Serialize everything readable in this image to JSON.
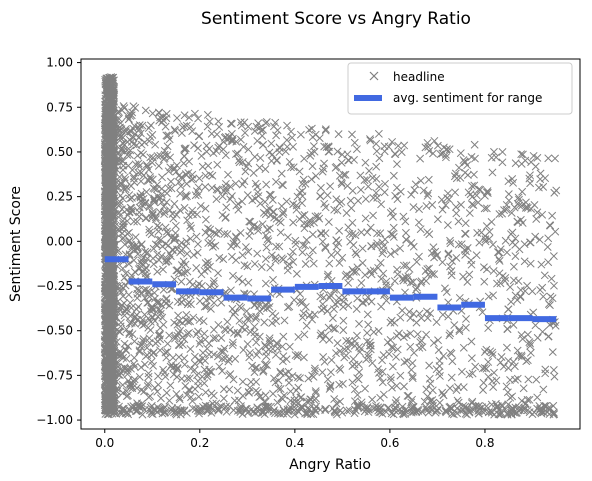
{
  "chart_data": {
    "type": "scatter",
    "title": "Sentiment Score vs Angry Ratio",
    "xlabel": "Angry Ratio",
    "ylabel": "Sentiment Score",
    "xlim": [
      -0.05,
      1.0
    ],
    "ylim": [
      -1.05,
      1.02
    ],
    "x_ticks": [
      0.0,
      0.2,
      0.4,
      0.6,
      0.8
    ],
    "x_tick_labels": [
      "0.0",
      "0.2",
      "0.4",
      "0.6",
      "0.8"
    ],
    "y_ticks": [
      1.0,
      0.75,
      0.5,
      0.25,
      0.0,
      -0.25,
      -0.5,
      -0.75,
      -1.0
    ],
    "y_tick_labels": [
      "1.00",
      "0.75",
      "0.50",
      "0.25",
      "0.00",
      "−0.25",
      "−0.50",
      "−0.75",
      "−1.00"
    ],
    "grid": false,
    "legend_placement": "top-right",
    "series": [
      {
        "name": "headline",
        "kind": "scatter",
        "marker": "x",
        "color": "#808080",
        "description_note": "dense cloud; most points near x=0, spreading to ~0.95",
        "points_note": "points sampled to approximate distribution"
      },
      {
        "name": "avg. sentiment for range",
        "kind": "segments",
        "color": "#4169e1",
        "bins": [
          {
            "x0": 0.0,
            "x1": 0.05,
            "y": -0.1
          },
          {
            "x0": 0.05,
            "x1": 0.1,
            "y": -0.225
          },
          {
            "x0": 0.1,
            "x1": 0.15,
            "y": -0.24
          },
          {
            "x0": 0.15,
            "x1": 0.2,
            "y": -0.28
          },
          {
            "x0": 0.2,
            "x1": 0.25,
            "y": -0.285
          },
          {
            "x0": 0.25,
            "x1": 0.3,
            "y": -0.315
          },
          {
            "x0": 0.3,
            "x1": 0.35,
            "y": -0.32
          },
          {
            "x0": 0.35,
            "x1": 0.4,
            "y": -0.27
          },
          {
            "x0": 0.4,
            "x1": 0.45,
            "y": -0.255
          },
          {
            "x0": 0.45,
            "x1": 0.5,
            "y": -0.25
          },
          {
            "x0": 0.5,
            "x1": 0.55,
            "y": -0.28
          },
          {
            "x0": 0.55,
            "x1": 0.6,
            "y": -0.28
          },
          {
            "x0": 0.6,
            "x1": 0.65,
            "y": -0.315
          },
          {
            "x0": 0.65,
            "x1": 0.7,
            "y": -0.31
          },
          {
            "x0": 0.7,
            "x1": 0.75,
            "y": -0.37
          },
          {
            "x0": 0.75,
            "x1": 0.8,
            "y": -0.355
          },
          {
            "x0": 0.8,
            "x1": 0.85,
            "y": -0.43
          },
          {
            "x0": 0.85,
            "x1": 0.9,
            "y": -0.43
          },
          {
            "x0": 0.9,
            "x1": 0.95,
            "y": -0.435
          }
        ]
      }
    ]
  }
}
